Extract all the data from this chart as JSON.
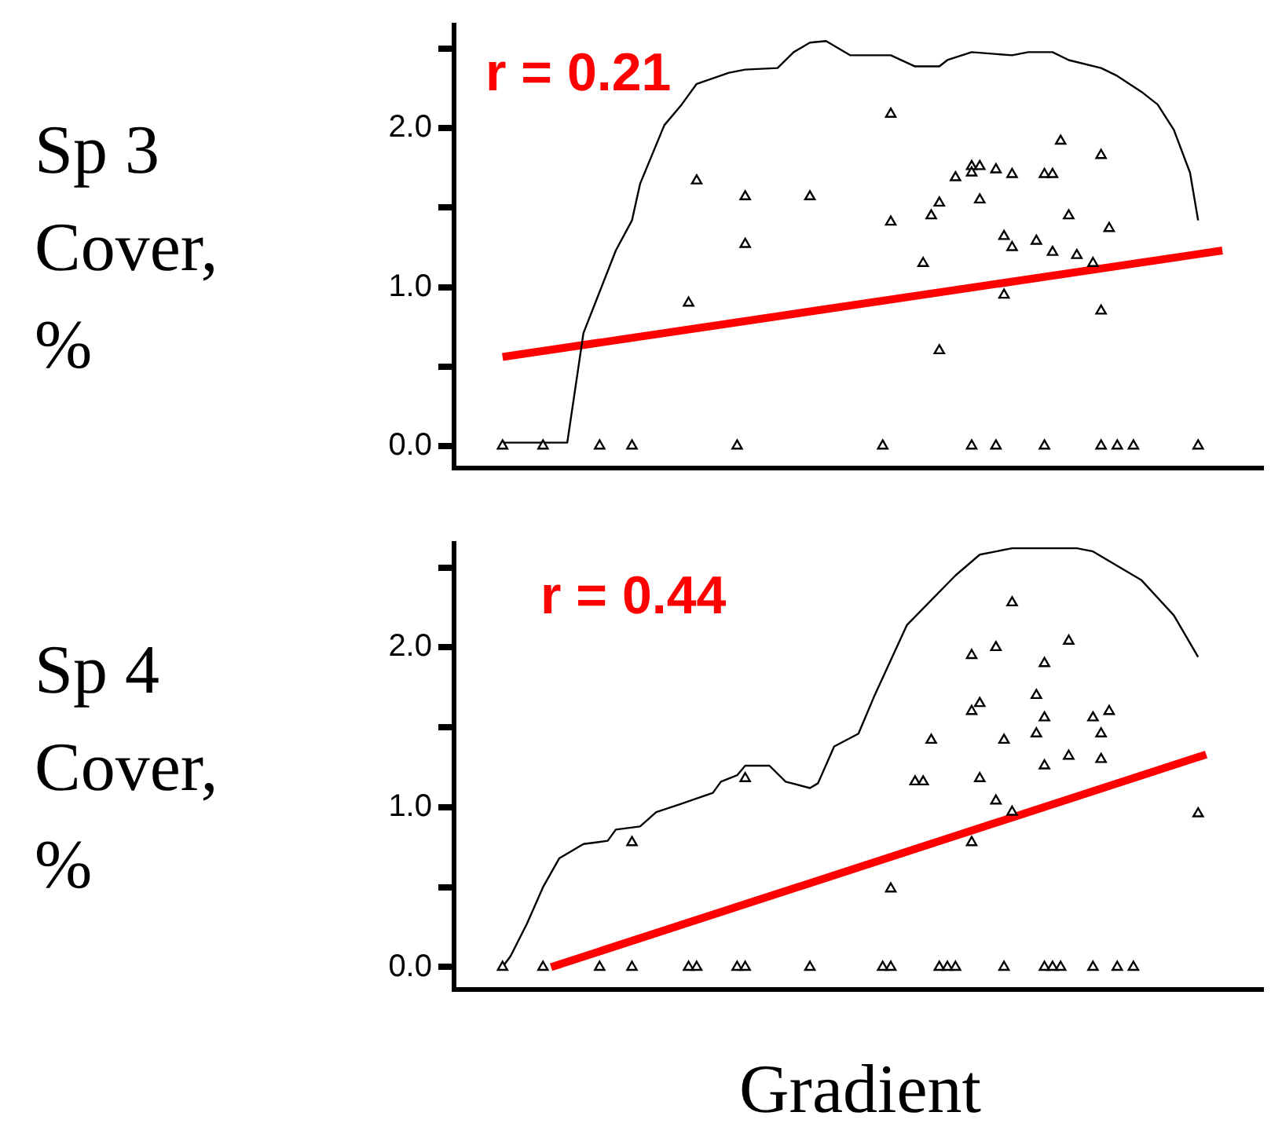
{
  "chart_data": [
    {
      "type": "scatter",
      "ylabel": "Sp 3\nCover,\n%",
      "annotations": [
        "r = 0.21"
      ],
      "ylim": [
        -0.14,
        2.65
      ],
      "tick_labels": "y",
      "grid": false,
      "legend": false,
      "marker": "triangle",
      "yticks": [
        {
          "value": 0,
          "label": "0.0"
        },
        {
          "value": 0.5,
          "label": null
        },
        {
          "value": 1,
          "label": "1.0"
        },
        {
          "value": 1.5,
          "label": null
        },
        {
          "value": 2,
          "label": "2.0"
        },
        {
          "value": 2.5,
          "label": null
        }
      ],
      "categories": [
        null,
        null,
        null,
        null,
        null,
        null,
        null,
        null,
        null,
        null,
        null,
        null,
        null,
        null,
        null,
        null,
        null,
        null,
        null,
        null,
        null,
        null,
        null,
        null,
        null,
        null,
        null,
        null,
        null,
        null,
        null,
        null,
        null,
        null,
        null,
        null,
        null,
        null,
        null,
        null,
        null,
        null,
        null,
        null,
        null,
        null,
        null,
        null,
        null,
        null,
        null,
        null,
        null,
        null,
        null,
        null,
        null,
        null,
        null,
        null,
        null,
        null,
        null,
        null,
        null,
        null,
        null,
        null,
        null,
        null,
        null,
        null,
        null,
        null,
        null,
        null,
        null,
        null,
        null,
        null,
        null,
        null,
        null,
        null,
        null,
        null,
        null,
        null,
        null,
        null,
        null,
        null,
        null,
        null,
        null,
        null,
        null,
        null,
        null,
        null,
        null
      ],
      "series": [
        {
          "type": "scatter",
          "color": "#000000",
          "values": [
            null,
            null,
            null,
            null,
            null,
            null,
            0,
            null,
            null,
            null,
            null,
            0,
            null,
            null,
            null,
            null,
            null,
            null,
            0,
            null,
            null,
            null,
            0,
            null,
            null,
            null,
            null,
            null,
            null,
            0.9,
            1.67,
            null,
            null,
            null,
            null,
            0,
            1.57,
            null,
            null,
            null,
            null,
            null,
            null,
            null,
            1.57,
            null,
            null,
            null,
            null,
            null,
            null,
            null,
            null,
            0,
            2.09,
            null,
            null,
            null,
            1.15,
            1.45,
            1.53,
            null,
            1.69,
            null,
            0,
            1.76,
            null,
            0,
            1.32,
            1.71,
            null,
            null,
            1.29,
            0,
            1.71,
            1.92,
            1.45,
            1.2,
            null,
            1.15,
            0,
            1.37,
            0,
            null,
            0,
            null,
            null,
            null,
            null,
            null,
            null,
            null,
            0,
            null,
            null,
            null,
            null,
            null,
            null,
            null,
            null
          ]
        },
        {
          "type": "scatter",
          "color": "#000000",
          "values": [
            null,
            null,
            null,
            null,
            null,
            null,
            null,
            null,
            null,
            null,
            null,
            null,
            null,
            null,
            null,
            null,
            null,
            null,
            null,
            null,
            null,
            null,
            null,
            null,
            null,
            null,
            null,
            null,
            null,
            null,
            null,
            null,
            null,
            null,
            null,
            null,
            1.27,
            null,
            null,
            null,
            null,
            null,
            null,
            null,
            null,
            null,
            null,
            null,
            null,
            null,
            null,
            null,
            null,
            null,
            1.41,
            null,
            null,
            null,
            null,
            null,
            0.6,
            null,
            null,
            null,
            1.72,
            1.55,
            null,
            1.74,
            0.95,
            1.25,
            null,
            null,
            null,
            1.71,
            1.22,
            null,
            null,
            null,
            null,
            null,
            1.83,
            null,
            null,
            null,
            null,
            null,
            null,
            null,
            null,
            null,
            null,
            null,
            null,
            null,
            null,
            null,
            null,
            null,
            null,
            null,
            null
          ]
        },
        {
          "type": "scatter",
          "color": "#000000",
          "values": [
            null,
            null,
            null,
            null,
            null,
            null,
            null,
            null,
            null,
            null,
            null,
            null,
            null,
            null,
            null,
            null,
            null,
            null,
            null,
            null,
            null,
            null,
            null,
            null,
            null,
            null,
            null,
            null,
            null,
            null,
            null,
            null,
            null,
            null,
            null,
            null,
            null,
            null,
            null,
            null,
            null,
            null,
            null,
            null,
            null,
            null,
            null,
            null,
            null,
            null,
            null,
            null,
            null,
            null,
            null,
            null,
            null,
            null,
            null,
            null,
            null,
            null,
            null,
            null,
            1.76,
            null,
            null,
            null,
            null,
            null,
            null,
            null,
            null,
            null,
            null,
            null,
            null,
            null,
            null,
            null,
            0.85,
            null,
            null,
            null,
            null,
            null,
            null,
            null,
            null,
            null,
            null,
            null,
            null,
            null,
            null,
            null,
            null,
            null,
            null,
            null,
            null
          ]
        },
        {
          "type": "line",
          "marker": "none",
          "color": "#000000",
          "values": [
            null,
            null,
            null,
            null,
            null,
            null,
            0.02,
            null,
            null,
            null,
            null,
            null,
            null,
            null,
            0.02,
            null,
            0.71,
            null,
            null,
            null,
            1.23,
            null,
            1.42,
            1.65,
            null,
            null,
            2.02,
            null,
            2.14,
            null,
            2.28,
            null,
            null,
            null,
            2.35,
            null,
            2.37,
            null,
            null,
            null,
            2.38,
            null,
            2.48,
            null,
            2.54,
            null,
            2.55,
            null,
            null,
            2.46,
            null,
            null,
            null,
            null,
            2.46,
            null,
            null,
            2.39,
            null,
            null,
            2.39,
            2.43,
            null,
            null,
            2.48,
            null,
            null,
            null,
            null,
            2.46,
            null,
            2.48,
            null,
            null,
            2.48,
            null,
            2.43,
            null,
            null,
            null,
            2.38,
            null,
            2.33,
            null,
            null,
            2.23,
            null,
            2.15,
            null,
            1.99,
            null,
            1.72,
            1.42,
            null,
            null,
            null,
            null,
            null,
            null,
            null,
            null
          ]
        },
        {
          "type": "line",
          "marker": "none",
          "color": "#ff0000",
          "values": [
            null,
            null,
            null,
            null,
            null,
            null,
            0.56,
            null,
            null,
            null,
            null,
            null,
            null,
            null,
            null,
            null,
            null,
            null,
            null,
            null,
            null,
            null,
            null,
            null,
            null,
            null,
            null,
            null,
            null,
            null,
            null,
            null,
            null,
            null,
            null,
            null,
            null,
            null,
            null,
            null,
            null,
            null,
            null,
            null,
            null,
            null,
            null,
            null,
            null,
            null,
            null,
            null,
            null,
            null,
            null,
            null,
            null,
            null,
            null,
            null,
            null,
            null,
            null,
            null,
            null,
            null,
            null,
            null,
            null,
            null,
            null,
            null,
            null,
            null,
            null,
            null,
            null,
            null,
            null,
            null,
            null,
            null,
            null,
            null,
            null,
            null,
            null,
            null,
            null,
            null,
            null,
            null,
            null,
            null,
            null,
            1.23,
            null,
            null,
            null,
            null,
            null
          ]
        }
      ]
    },
    {
      "type": "scatter",
      "ylabel": "Sp 4\nCover,\n%",
      "xlabel": "Gradient",
      "annotations": [
        "r = 0.44"
      ],
      "ylim": [
        -0.14,
        2.65
      ],
      "tick_labels": "y",
      "grid": false,
      "legend": false,
      "marker": "triangle",
      "yticks": [
        {
          "value": 0,
          "label": "0.0"
        },
        {
          "value": 0.5,
          "label": null
        },
        {
          "value": 1,
          "label": "1.0"
        },
        {
          "value": 1.5,
          "label": null
        },
        {
          "value": 2,
          "label": "2.0"
        },
        {
          "value": 2.5,
          "label": null
        }
      ],
      "categories": [
        null,
        null,
        null,
        null,
        null,
        null,
        null,
        null,
        null,
        null,
        null,
        null,
        null,
        null,
        null,
        null,
        null,
        null,
        null,
        null,
        null,
        null,
        null,
        null,
        null,
        null,
        null,
        null,
        null,
        null,
        null,
        null,
        null,
        null,
        null,
        null,
        null,
        null,
        null,
        null,
        null,
        null,
        null,
        null,
        null,
        null,
        null,
        null,
        null,
        null,
        null,
        null,
        null,
        null,
        null,
        null,
        null,
        null,
        null,
        null,
        null,
        null,
        null,
        null,
        null,
        null,
        null,
        null,
        null,
        null,
        null,
        null,
        null,
        null,
        null,
        null,
        null,
        null,
        null,
        null,
        null,
        null,
        null,
        null,
        null,
        null,
        null,
        null,
        null,
        null,
        null,
        null,
        null,
        null,
        null,
        null,
        null,
        null,
        null,
        null,
        null
      ],
      "series": [
        {
          "type": "scatter",
          "color": "#000000",
          "values": [
            null,
            null,
            null,
            null,
            null,
            null,
            0,
            null,
            null,
            null,
            null,
            0,
            null,
            null,
            null,
            null,
            null,
            null,
            0,
            null,
            null,
            null,
            0,
            null,
            null,
            null,
            null,
            null,
            null,
            0,
            0,
            null,
            null,
            null,
            null,
            0,
            0,
            null,
            null,
            null,
            null,
            null,
            null,
            null,
            0,
            null,
            null,
            null,
            null,
            null,
            null,
            null,
            null,
            0,
            0,
            null,
            null,
            1.16,
            1.16,
            1.42,
            0,
            0,
            0,
            null,
            1.95,
            1.65,
            null,
            2.0,
            0,
            2.28,
            null,
            null,
            1.7,
            0,
            0,
            0,
            2.04,
            null,
            null,
            0,
            1.46,
            1.6,
            0,
            null,
            0,
            null,
            null,
            null,
            null,
            null,
            null,
            null,
            0.96,
            null,
            null,
            null,
            null,
            null,
            null,
            null,
            null
          ]
        },
        {
          "type": "scatter",
          "color": "#000000",
          "values": [
            null,
            null,
            null,
            null,
            null,
            null,
            null,
            null,
            null,
            null,
            null,
            null,
            null,
            null,
            null,
            null,
            null,
            null,
            null,
            null,
            null,
            null,
            0.78,
            null,
            null,
            null,
            null,
            null,
            null,
            null,
            null,
            null,
            null,
            null,
            null,
            null,
            1.18,
            null,
            null,
            null,
            null,
            null,
            null,
            null,
            null,
            null,
            null,
            null,
            null,
            null,
            null,
            null,
            null,
            null,
            0.49,
            null,
            null,
            null,
            null,
            null,
            null,
            null,
            null,
            null,
            1.6,
            1.18,
            null,
            1.04,
            1.42,
            0.97,
            null,
            null,
            1.46,
            1.9,
            null,
            null,
            1.32,
            null,
            null,
            1.56,
            1.3,
            null,
            null,
            null,
            null,
            null,
            null,
            null,
            null,
            null,
            null,
            null,
            null,
            null,
            null,
            null,
            null,
            null,
            null,
            null,
            null
          ]
        },
        {
          "type": "scatter",
          "color": "#000000",
          "values": [
            null,
            null,
            null,
            null,
            null,
            null,
            null,
            null,
            null,
            null,
            null,
            null,
            null,
            null,
            null,
            null,
            null,
            null,
            null,
            null,
            null,
            null,
            null,
            null,
            null,
            null,
            null,
            null,
            null,
            null,
            null,
            null,
            null,
            null,
            null,
            null,
            null,
            null,
            null,
            null,
            null,
            null,
            null,
            null,
            null,
            null,
            null,
            null,
            null,
            null,
            null,
            null,
            null,
            null,
            null,
            null,
            null,
            null,
            null,
            null,
            null,
            null,
            null,
            null,
            0.78,
            null,
            null,
            null,
            null,
            null,
            null,
            null,
            null,
            1.56,
            null,
            null,
            null,
            null,
            null,
            null,
            null,
            null,
            null,
            null,
            null,
            null,
            null,
            null,
            null,
            null,
            null,
            null,
            null,
            null,
            null,
            null,
            null,
            null,
            null,
            null,
            null
          ]
        },
        {
          "type": "scatter",
          "color": "#000000",
          "values": [
            null,
            null,
            null,
            null,
            null,
            null,
            null,
            null,
            null,
            null,
            null,
            null,
            null,
            null,
            null,
            null,
            null,
            null,
            null,
            null,
            null,
            null,
            null,
            null,
            null,
            null,
            null,
            null,
            null,
            null,
            null,
            null,
            null,
            null,
            null,
            null,
            null,
            null,
            null,
            null,
            null,
            null,
            null,
            null,
            null,
            null,
            null,
            null,
            null,
            null,
            null,
            null,
            null,
            null,
            null,
            null,
            null,
            null,
            null,
            null,
            null,
            null,
            null,
            null,
            null,
            null,
            null,
            null,
            null,
            null,
            null,
            null,
            null,
            1.26,
            null,
            null,
            null,
            null,
            null,
            null,
            null,
            null,
            null,
            null,
            null,
            null,
            null,
            null,
            null,
            null,
            null,
            null,
            null,
            null,
            null,
            null,
            null,
            null,
            null,
            null,
            null
          ]
        },
        {
          "type": "line",
          "marker": "none",
          "color": "#000000",
          "values": [
            null,
            null,
            null,
            null,
            null,
            null,
            0,
            0.07,
            null,
            0.27,
            null,
            0.5,
            null,
            0.68,
            null,
            null,
            0.77,
            null,
            null,
            0.79,
            0.86,
            null,
            null,
            0.88,
            null,
            0.97,
            null,
            null,
            1.02,
            null,
            null,
            null,
            1.09,
            1.16,
            null,
            1.2,
            1.26,
            null,
            null,
            1.26,
            null,
            1.16,
            null,
            null,
            1.12,
            1.15,
            null,
            1.38,
            null,
            null,
            1.46,
            null,
            1.7,
            null,
            null,
            null,
            2.14,
            null,
            null,
            null,
            null,
            null,
            2.45,
            null,
            null,
            2.58,
            null,
            null,
            null,
            2.62,
            null,
            null,
            null,
            null,
            null,
            null,
            null,
            2.62,
            null,
            2.6,
            null,
            null,
            2.51,
            null,
            null,
            2.42,
            null,
            null,
            null,
            2.2,
            null,
            null,
            1.94,
            null,
            null,
            null,
            null,
            null,
            null,
            null,
            null
          ]
        },
        {
          "type": "line",
          "marker": "none",
          "color": "#ff0000",
          "values": [
            null,
            null,
            null,
            null,
            null,
            null,
            null,
            null,
            null,
            null,
            null,
            null,
            0,
            null,
            null,
            null,
            null,
            null,
            null,
            null,
            null,
            null,
            null,
            null,
            null,
            null,
            null,
            null,
            null,
            null,
            null,
            null,
            null,
            null,
            null,
            null,
            null,
            null,
            null,
            null,
            null,
            null,
            null,
            null,
            null,
            null,
            null,
            null,
            null,
            null,
            null,
            null,
            null,
            null,
            null,
            null,
            null,
            null,
            null,
            null,
            null,
            null,
            null,
            null,
            null,
            null,
            null,
            null,
            null,
            null,
            null,
            null,
            null,
            null,
            null,
            null,
            null,
            null,
            null,
            null,
            null,
            null,
            null,
            null,
            null,
            null,
            null,
            null,
            null,
            null,
            null,
            null,
            null,
            1.33,
            null,
            null,
            null,
            null,
            null,
            null,
            null
          ]
        }
      ]
    }
  ]
}
